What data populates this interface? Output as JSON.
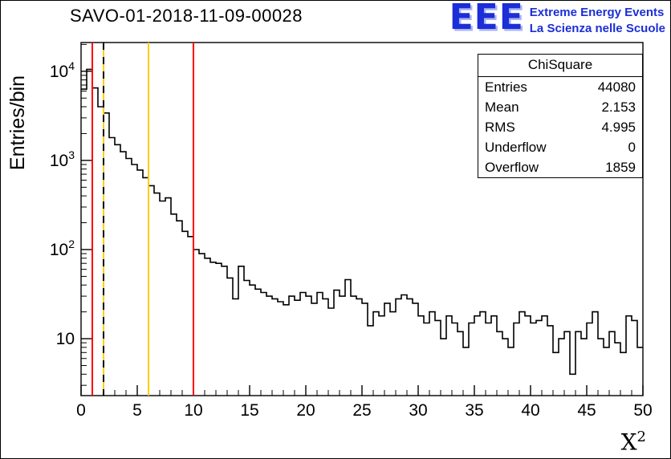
{
  "title": "SAVO-01-2018-11-09-00028",
  "logo": {
    "eee": "EEE",
    "line1": "Extreme Energy Events",
    "line2": "La Scienza nelle Scuole",
    "color": "#1b2ed8"
  },
  "stats": {
    "title": "ChiSquare",
    "rows": [
      {
        "label": "Entries",
        "value": "44080"
      },
      {
        "label": "Mean",
        "value": "2.153"
      },
      {
        "label": "RMS",
        "value": "4.995"
      },
      {
        "label": "Underflow",
        "value": "0"
      },
      {
        "label": "Overflow",
        "value": "1859"
      }
    ]
  },
  "axes": {
    "y_title": "Entries/bin",
    "x_title_base": "X",
    "x_title_exp": "2"
  },
  "chart_data": {
    "type": "bar",
    "subtype": "step-histogram",
    "title": "SAVO-01-2018-11-09-00028",
    "xlabel": "X^2",
    "ylabel": "Entries/bin",
    "yscale": "log",
    "grid": false,
    "x_start": 0,
    "bin_width": 0.5,
    "xlim": [
      0,
      50
    ],
    "ylim": [
      2.3,
      21000
    ],
    "x_tick_values": [
      0,
      5,
      10,
      15,
      20,
      25,
      30,
      35,
      40,
      45,
      50
    ],
    "y_tick_exponents": [
      1,
      2,
      3,
      4
    ],
    "line_color": "#000000",
    "values": [
      6300,
      10500,
      6500,
      4000,
      3400,
      1800,
      1500,
      1250,
      1050,
      900,
      780,
      640,
      520,
      430,
      350,
      380,
      250,
      210,
      160,
      140,
      100,
      90,
      80,
      72,
      70,
      65,
      48,
      28,
      65,
      45,
      40,
      36,
      33,
      30,
      28,
      26,
      24,
      30,
      27,
      33,
      30,
      25,
      33,
      28,
      22,
      35,
      30,
      46,
      30,
      28,
      25,
      14,
      20,
      18,
      25,
      20,
      28,
      31,
      28,
      25,
      18,
      15,
      20,
      16,
      10,
      18,
      15,
      12,
      8,
      15,
      18,
      20,
      15,
      18,
      12,
      10,
      8,
      15,
      20,
      18,
      15,
      16,
      18,
      14,
      7,
      10,
      12,
      4,
      12,
      10,
      15,
      20,
      10,
      8,
      12,
      9,
      7,
      18,
      16,
      8
    ],
    "vlines": [
      {
        "x": 1,
        "color": "#ff0000",
        "style": "solid",
        "name": "red-cut-low"
      },
      {
        "x": 2,
        "color": "#ffcc00",
        "style": "dashed-black-over-yellow",
        "name": "mean-line"
      },
      {
        "x": 6,
        "color": "#ffcc00",
        "style": "solid",
        "name": "yellow-cut"
      },
      {
        "x": 10,
        "color": "#ff0000",
        "style": "solid",
        "name": "red-cut-high"
      }
    ]
  }
}
